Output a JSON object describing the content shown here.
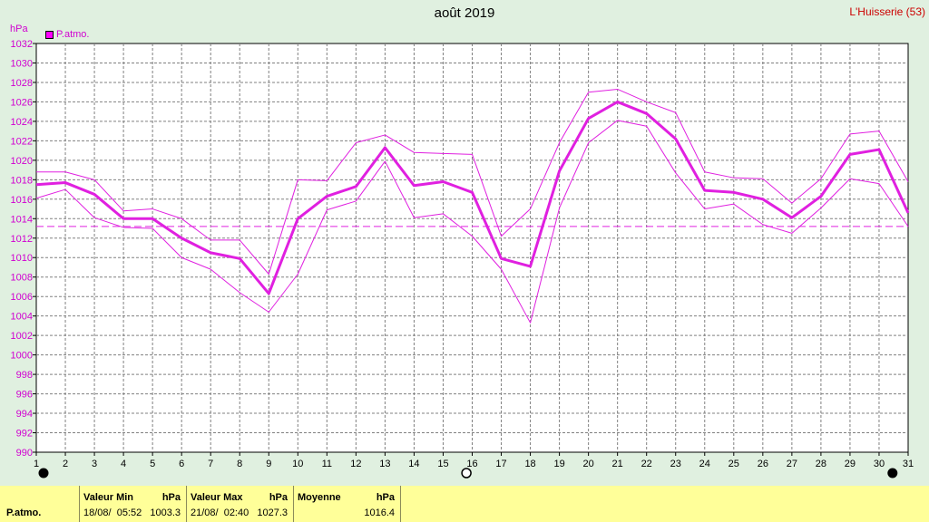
{
  "header": {
    "title": "août 2019",
    "location": "L'Huisserie (53)",
    "unit": "hPa",
    "legend_label": "P.atmo."
  },
  "chart_data": {
    "type": "line",
    "title": "août 2019",
    "ylabel": "hPa",
    "xlabel": "",
    "ylim": [
      990,
      1032
    ],
    "y_ticks": [
      990,
      992,
      994,
      996,
      998,
      1000,
      1002,
      1004,
      1006,
      1008,
      1010,
      1012,
      1014,
      1016,
      1018,
      1020,
      1022,
      1024,
      1026,
      1028,
      1030,
      1032
    ],
    "x": [
      1,
      2,
      3,
      4,
      5,
      6,
      7,
      8,
      9,
      10,
      11,
      12,
      13,
      14,
      15,
      16,
      17,
      18,
      19,
      20,
      21,
      22,
      23,
      24,
      25,
      26,
      27,
      28,
      29,
      30,
      31
    ],
    "grid": true,
    "legend_placement": "top-left",
    "mean_line": 1013.2,
    "moon_phases": [
      {
        "day": 1,
        "phase": "new"
      },
      {
        "day": 15.8,
        "phase": "full"
      },
      {
        "day": 30.9,
        "phase": "new"
      }
    ],
    "colors": {
      "series": "#e020e0",
      "mean": "#e020e0",
      "grid": "#808080",
      "plot_bg": "#ffffff",
      "page_bg": "#e0f0e0"
    },
    "series": [
      {
        "name": "P.atmo.",
        "role": "mean",
        "values": [
          1017.5,
          1017.7,
          1016.5,
          1014.0,
          1014.0,
          1012.0,
          1010.5,
          1009.9,
          1006.3,
          1014.0,
          1016.3,
          1017.3,
          1021.3,
          1017.4,
          1017.8,
          1016.7,
          1009.9,
          1009.1,
          1018.9,
          1024.3,
          1026.0,
          1024.8,
          1022.2,
          1016.9,
          1016.7,
          1016.0,
          1014.1,
          1016.3,
          1020.6,
          1021.1,
          1014.6
        ]
      },
      {
        "role": "max",
        "values": [
          1018.8,
          1018.8,
          1018.0,
          1014.8,
          1015.0,
          1014.0,
          1011.8,
          1011.8,
          1008.3,
          1018.0,
          1017.9,
          1021.8,
          1022.6,
          1020.8,
          1020.7,
          1020.6,
          1012.2,
          1015.0,
          1021.8,
          1027.0,
          1027.3,
          1026.0,
          1024.9,
          1018.8,
          1018.2,
          1018.1,
          1015.6,
          1018.1,
          1022.7,
          1023.0,
          1017.8
        ]
      },
      {
        "role": "min",
        "values": [
          1016.1,
          1017.0,
          1014.1,
          1013.1,
          1013.0,
          1010.0,
          1008.8,
          1006.4,
          1004.4,
          1008.3,
          1014.9,
          1015.8,
          1019.9,
          1014.1,
          1014.5,
          1012.2,
          1008.8,
          1003.3,
          1015.1,
          1021.8,
          1024.1,
          1023.5,
          1018.7,
          1015.0,
          1015.5,
          1013.4,
          1012.5,
          1015.1,
          1018.1,
          1017.6,
          1013.2
        ]
      }
    ]
  },
  "stats": {
    "row_label": "P.atmo.",
    "min": {
      "header": "Valeur Min",
      "unit": "hPa",
      "date": "18/08/  05:52",
      "value": "1003.3"
    },
    "max": {
      "header": "Valeur Max",
      "unit": "hPa",
      "date": "21/08/  02:40",
      "value": "1027.3"
    },
    "avg": {
      "header": "Moyenne",
      "unit": "hPa",
      "value": "1016.4"
    }
  }
}
